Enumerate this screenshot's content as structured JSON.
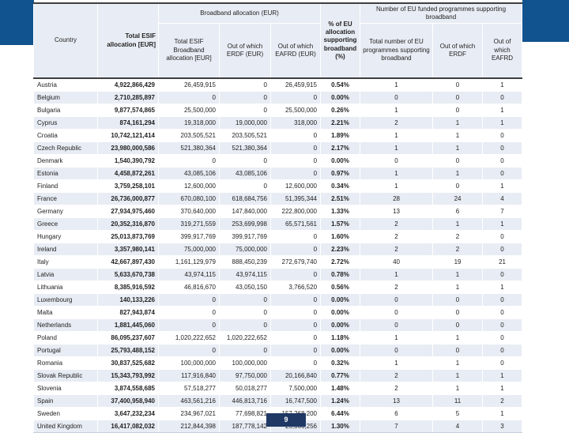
{
  "page": {
    "number": "9"
  },
  "colors": {
    "accent_blue": "#11538f",
    "footer_navy": "#1f3864",
    "row_shade": "#e8ecf4"
  },
  "table": {
    "headers": {
      "country": "Country",
      "total_esif": "Total ESIF allocation [EUR]",
      "broadband_group": "Broadband allocation (EUR)",
      "bb_total": "Total ESIF Broadband allocation [EUR]",
      "bb_erdf": "Out of which ERDF (EUR)",
      "bb_eafrd": "Out of which EAFRD (EUR)",
      "pct": "% of EU allocation supporting broadband (%)",
      "prog_group": "Number of EU funded programmes supporting broadband",
      "prog_total": "Total number of EU programmes supporting broadband",
      "prog_erdf": "Out of which ERDF",
      "prog_eafrd": "Out of which EAFRD"
    },
    "rows": [
      [
        "Austria",
        "4,922,866,429",
        "26,459,915",
        "0",
        "26,459,915",
        "0.54%",
        "1",
        "0",
        "1"
      ],
      [
        "Belgium",
        "2,710,285,897",
        "0",
        "0",
        "0",
        "0.00%",
        "0",
        "0",
        "0"
      ],
      [
        "Bulgaria",
        "9,877,574,865",
        "25,500,000",
        "0",
        "25,500,000",
        "0.26%",
        "1",
        "0",
        "1"
      ],
      [
        "Cyprus",
        "874,161,294",
        "19,318,000",
        "19,000,000",
        "318,000",
        "2.21%",
        "2",
        "1",
        "1"
      ],
      [
        "Croatia",
        "10,742,121,414",
        "203,505,521",
        "203,505,521",
        "0",
        "1.89%",
        "1",
        "1",
        "0"
      ],
      [
        "Czech Republic",
        "23,980,000,586",
        "521,380,364",
        "521,380,364",
        "0",
        "2.17%",
        "1",
        "1",
        "0"
      ],
      [
        "Denmark",
        "1,540,390,792",
        "0",
        "0",
        "0",
        "0.00%",
        "0",
        "0",
        "0"
      ],
      [
        "Estonia",
        "4,458,872,261",
        "43,085,106",
        "43,085,106",
        "0",
        "0.97%",
        "1",
        "1",
        "0"
      ],
      [
        "Finland",
        "3,759,258,101",
        "12,600,000",
        "0",
        "12,600,000",
        "0.34%",
        "1",
        "0",
        "1"
      ],
      [
        "France",
        "26,736,000,877",
        "670,080,100",
        "618,684,756",
        "51,395,344",
        "2.51%",
        "28",
        "24",
        "4"
      ],
      [
        "Germany",
        "27,934,975,460",
        "370,640,000",
        "147,840,000",
        "222,800,000",
        "1.33%",
        "13",
        "6",
        "7"
      ],
      [
        "Greece",
        "20,352,316,870",
        "319,271,559",
        "253,699,998",
        "65,571,561",
        "1.57%",
        "2",
        "1",
        "1"
      ],
      [
        "Hungary",
        "25,013,873,769",
        "399,917,769",
        "399,917,769",
        "0",
        "1.60%",
        "2",
        "2",
        "0"
      ],
      [
        "Ireland",
        "3,357,980,141",
        "75,000,000",
        "75,000,000",
        "0",
        "2.23%",
        "2",
        "2",
        "0"
      ],
      [
        "Italy",
        "42,667,897,430",
        "1,161,129,979",
        "888,450,239",
        "272,679,740",
        "2.72%",
        "40",
        "19",
        "21"
      ],
      [
        "Latvia",
        "5,633,670,738",
        "43,974,115",
        "43,974,115",
        "0",
        "0.78%",
        "1",
        "1",
        "0"
      ],
      [
        "Lithuania",
        "8,385,916,592",
        "46,816,670",
        "43,050,150",
        "3,766,520",
        "0.56%",
        "2",
        "1",
        "1"
      ],
      [
        "Luxembourg",
        "140,133,226",
        "0",
        "0",
        "0",
        "0.00%",
        "0",
        "0",
        "0"
      ],
      [
        "Malta",
        "827,943,874",
        "0",
        "0",
        "0",
        "0.00%",
        "0",
        "0",
        "0"
      ],
      [
        "Netherlands",
        "1,881,445,060",
        "0",
        "0",
        "0",
        "0.00%",
        "0",
        "0",
        "0"
      ],
      [
        "Poland",
        "86,095,237,607",
        "1,020,222,652",
        "1,020,222,652",
        "0",
        "1.18%",
        "1",
        "1",
        "0"
      ],
      [
        "Portugal",
        "25,793,488,152",
        "0",
        "0",
        "0",
        "0.00%",
        "0",
        "0",
        "0"
      ],
      [
        "Romania",
        "30,837,525,682",
        "100,000,000",
        "100,000,000",
        "0",
        "0.32%",
        "1",
        "1",
        "0"
      ],
      [
        "Slovak Republic",
        "15,343,793,992",
        "117,916,840",
        "97,750,000",
        "20,166,840",
        "0.77%",
        "2",
        "1",
        "1"
      ],
      [
        "Slovenia",
        "3,874,558,685",
        "57,518,277",
        "50,018,277",
        "7,500,000",
        "1.48%",
        "2",
        "1",
        "1"
      ],
      [
        "Spain",
        "37,400,958,940",
        "463,561,216",
        "446,813,716",
        "16,747,500",
        "1.24%",
        "13",
        "11",
        "2"
      ],
      [
        "Sweden",
        "3,647,232,234",
        "234,967,021",
        "77,698,821",
        "157,268,200",
        "6.44%",
        "6",
        "5",
        "1"
      ],
      [
        "United Kingdom",
        "16,417,082,032",
        "212,844,398",
        "187,778,142",
        "25,066,256",
        "1.30%",
        "7",
        "4",
        "3"
      ]
    ]
  }
}
